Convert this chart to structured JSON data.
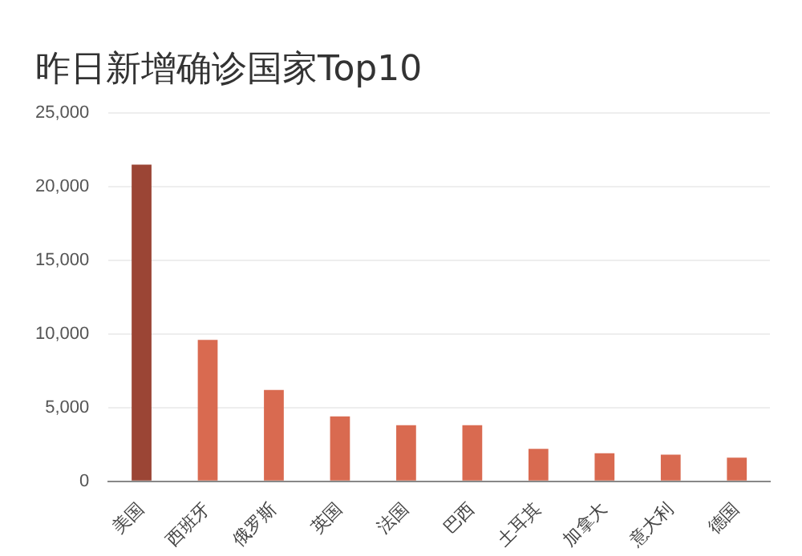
{
  "chart_data": {
    "type": "bar",
    "title": "昨日新增确诊国家Top10",
    "categories": [
      "美国",
      "西班牙",
      "俄罗斯",
      "英国",
      "法国",
      "巴西",
      "土耳其",
      "加拿大",
      "意大利",
      "德国"
    ],
    "values": [
      21500,
      9600,
      6200,
      4400,
      3800,
      3800,
      2200,
      1900,
      1800,
      1600
    ],
    "colors": [
      "#9b4535",
      "#d96a50",
      "#d96a50",
      "#d96a50",
      "#d96a50",
      "#d96a50",
      "#d96a50",
      "#d96a50",
      "#d96a50",
      "#d96a50"
    ],
    "ylim": [
      0,
      25000
    ],
    "yticks": [
      0,
      {
        "value": 5000,
        "label": "5,000"
      },
      {
        "value": 10000,
        "label": "10,000"
      },
      {
        "value": 15000,
        "label": "15,000"
      },
      {
        "value": 20000,
        "label": "20,000"
      },
      {
        "value": 25000,
        "label": "25,000"
      }
    ],
    "grid": "y",
    "legend": false
  }
}
